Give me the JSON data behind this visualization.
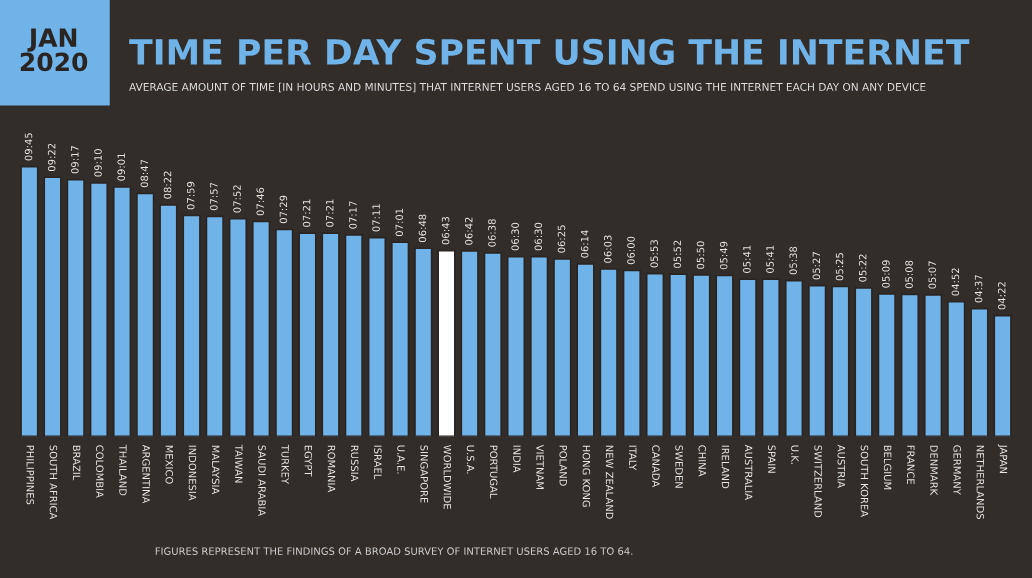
{
  "chart_data": {
    "type": "bar",
    "title": "TIME PER DAY SPENT USING THE INTERNET",
    "subtitle": "AVERAGE AMOUNT OF TIME [IN HOURS AND MINUTES] THAT INTERNET USERS AGED 16 TO 64 SPEND USING THE INTERNET EACH DAY ON ANY DEVICE",
    "annotations": [
      "JAN\n2020",
      "FIGURES REPRESENT THE FINDINGS OF A BROAD SURVEY OF INTERNET USERS AGED 16 TO 64."
    ],
    "categories": [
      "PHILIPPINES",
      "SOUTH AFRICA",
      "BRAZIL",
      "COLOMBIA",
      "THAILAND",
      "ARGENTINA",
      "MEXICO",
      "INDONESIA",
      "MALAYSIA",
      "TAIWAN",
      "SAUDI ARABIA",
      "TURKEY",
      "EGYPT",
      "ROMANIA",
      "RUSSIA",
      "ISRAEL",
      "U.A.E.",
      "SINGAPORE",
      "WORLDWIDE",
      "U.S.A.",
      "PORTUGAL",
      "INDIA",
      "VIETNAM",
      "POLAND",
      "HONG KONG",
      "NEW ZEALAND",
      "ITALY",
      "CANADA",
      "SWEDEN",
      "CHINA",
      "IRELAND",
      "AUSTRALIA",
      "SPAIN",
      "U.K.",
      "SWITZERLAND",
      "AUSTRIA",
      "SOUTH KOREA",
      "BELGIUM",
      "FRANCE",
      "DENMARK",
      "GERMANY",
      "NETHERLANDS",
      "JAPAN"
    ],
    "values": [
      585,
      562,
      557,
      550,
      541,
      527,
      502,
      479,
      477,
      472,
      466,
      449,
      441,
      441,
      437,
      431,
      421,
      408,
      403,
      402,
      398,
      390,
      390,
      385,
      374,
      363,
      360,
      353,
      352,
      350,
      349,
      341,
      341,
      338,
      327,
      325,
      322,
      309,
      308,
      307,
      292,
      277,
      262
    ],
    "value_labels": [
      "09:45",
      "09:22",
      "09:17",
      "09:10",
      "09:01",
      "08:47",
      "08:22",
      "07:59",
      "07:57",
      "07:52",
      "07:46",
      "07:29",
      "07:21",
      "07:21",
      "07:17",
      "07:11",
      "07:01",
      "06:48",
      "06:43",
      "06:42",
      "06:38",
      "06:30",
      "06:30",
      "06:25",
      "06:14",
      "06:03",
      "06:00",
      "05:53",
      "05:52",
      "05:50",
      "05:49",
      "05:41",
      "05:41",
      "05:38",
      "05:27",
      "05:25",
      "05:22",
      "05:09",
      "05:08",
      "05:07",
      "04:52",
      "04:37",
      "04:22"
    ],
    "colors": [
      "#6fb3e8",
      "#6fb3e8",
      "#6fb3e8",
      "#6fb3e8",
      "#6fb3e8",
      "#6fb3e8",
      "#6fb3e8",
      "#6fb3e8",
      "#6fb3e8",
      "#6fb3e8",
      "#6fb3e8",
      "#6fb3e8",
      "#6fb3e8",
      "#6fb3e8",
      "#6fb3e8",
      "#6fb3e8",
      "#6fb3e8",
      "#6fb3e8",
      "#ffffff",
      "#6fb3e8",
      "#6fb3e8",
      "#6fb3e8",
      "#6fb3e8",
      "#6fb3e8",
      "#6fb3e8",
      "#6fb3e8",
      "#6fb3e8",
      "#6fb3e8",
      "#6fb3e8",
      "#6fb3e8",
      "#6fb3e8",
      "#6fb3e8",
      "#6fb3e8",
      "#6fb3e8",
      "#6fb3e8",
      "#6fb3e8",
      "#6fb3e8",
      "#6fb3e8",
      "#6fb3e8",
      "#6fb3e8",
      "#6fb3e8",
      "#6fb3e8",
      "#6fb3e8"
    ],
    "tick_labels": "x",
    "grid": false,
    "legend": false
  }
}
